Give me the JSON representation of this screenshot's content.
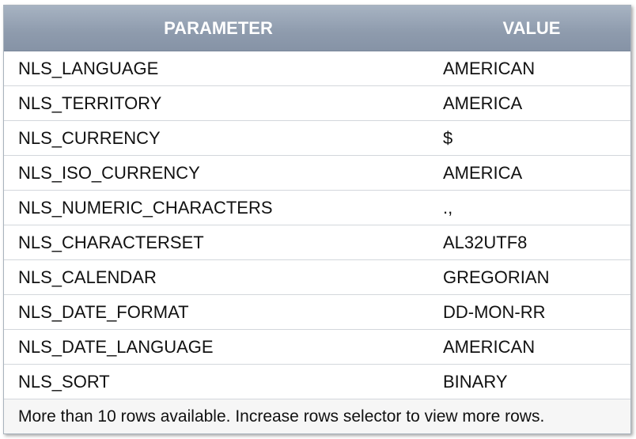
{
  "table": {
    "headers": {
      "parameter": "PARAMETER",
      "value": "VALUE"
    },
    "rows": [
      {
        "parameter": "NLS_LANGUAGE",
        "value": "AMERICAN"
      },
      {
        "parameter": "NLS_TERRITORY",
        "value": "AMERICA"
      },
      {
        "parameter": "NLS_CURRENCY",
        "value": "$"
      },
      {
        "parameter": "NLS_ISO_CURRENCY",
        "value": "AMERICA"
      },
      {
        "parameter": "NLS_NUMERIC_CHARACTERS",
        "value": ".,"
      },
      {
        "parameter": "NLS_CHARACTERSET",
        "value": "AL32UTF8"
      },
      {
        "parameter": "NLS_CALENDAR",
        "value": "GREGORIAN"
      },
      {
        "parameter": "NLS_DATE_FORMAT",
        "value": "DD-MON-RR"
      },
      {
        "parameter": "NLS_DATE_LANGUAGE",
        "value": "AMERICAN"
      },
      {
        "parameter": "NLS_SORT",
        "value": "BINARY"
      }
    ],
    "footer": "More than 10 rows available. Increase rows selector to view more rows."
  },
  "colors": {
    "header_bg": "#8e9bad",
    "header_text": "#ffffff",
    "row_border": "#d3d7dc"
  }
}
